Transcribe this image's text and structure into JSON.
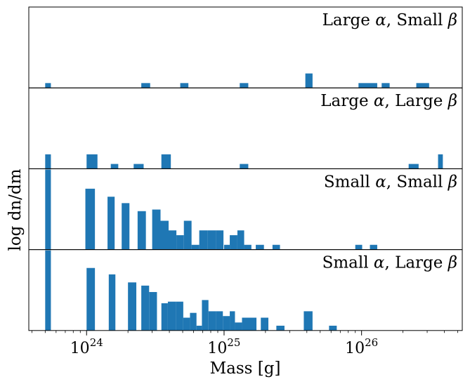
{
  "figure": {
    "ylabel": "log dn/dm",
    "xlabel": "Mass [g]",
    "bar_color": "#1f77b4",
    "xaxis": {
      "scale": "log",
      "range": [
        3.8e+23,
        5.4e+26
      ],
      "major_ticks": [
        {
          "value": 1e+24,
          "base": "10",
          "exp": "24"
        },
        {
          "value": 1e+25,
          "base": "10",
          "exp": "25"
        },
        {
          "value": 1e+26,
          "base": "10",
          "exp": "26"
        }
      ]
    }
  },
  "chart_data": [
    {
      "type": "bar",
      "panel_label_prefix": "Large ",
      "alpha_symbol": "α",
      "panel_label_mid": ", Small ",
      "beta_symbol": "β",
      "ylim": [
        0,
        5.0
      ],
      "yticks": "none",
      "bars": [
        {
          "x0": 5e+23,
          "x1": 5.5e+23,
          "v": 0.3
        },
        {
          "x0": 2.5e+24,
          "x1": 2.9e+24,
          "v": 0.3
        },
        {
          "x0": 4.8e+24,
          "x1": 5.5e+24,
          "v": 0.3
        },
        {
          "x0": 1.3e+25,
          "x1": 1.5e+25,
          "v": 0.3
        },
        {
          "x0": 3.9e+25,
          "x1": 4.4e+25,
          "v": 0.9
        },
        {
          "x0": 9.5e+25,
          "x1": 1.3e+26,
          "v": 0.3
        },
        {
          "x0": 1.4e+26,
          "x1": 1.6e+26,
          "v": 0.3
        },
        {
          "x0": 2.5e+26,
          "x1": 3.1e+26,
          "v": 0.3
        }
      ]
    },
    {
      "type": "bar",
      "panel_label_prefix": "Large ",
      "alpha_symbol": "α",
      "panel_label_mid": ", Large ",
      "beta_symbol": "β",
      "ylim": [
        0,
        5.0
      ],
      "yticks": "none",
      "bars": [
        {
          "x0": 5e+23,
          "x1": 5.5e+23,
          "v": 0.9
        },
        {
          "x0": 1e+24,
          "x1": 1.2e+24,
          "v": 0.9
        },
        {
          "x0": 1.5e+24,
          "x1": 1.7e+24,
          "v": 0.3
        },
        {
          "x0": 2.2e+24,
          "x1": 2.6e+24,
          "v": 0.3
        },
        {
          "x0": 3.5e+24,
          "x1": 4.1e+24,
          "v": 0.9
        },
        {
          "x0": 1.3e+25,
          "x1": 1.5e+25,
          "v": 0.3
        },
        {
          "x0": 2.2e+26,
          "x1": 2.6e+26,
          "v": 0.3
        },
        {
          "x0": 3.6e+26,
          "x1": 3.9e+26,
          "v": 0.9
        }
      ]
    },
    {
      "type": "bar",
      "panel_label_prefix": "Small ",
      "alpha_symbol": "α",
      "panel_label_mid": ", Small ",
      "beta_symbol": "β",
      "ylim": [
        0,
        5.0
      ],
      "yticks": "none",
      "bars": [
        {
          "x0": 5e+23,
          "x1": 5.5e+23,
          "v": 5.0
        },
        {
          "x0": 9.8e+23,
          "x1": 1.15e+24,
          "v": 3.8
        },
        {
          "x0": 1.42e+24,
          "x1": 1.6e+24,
          "v": 3.3
        },
        {
          "x0": 1.8e+24,
          "x1": 2.05e+24,
          "v": 2.9
        },
        {
          "x0": 2.35e+24,
          "x1": 2.7e+24,
          "v": 2.4
        },
        {
          "x0": 3e+24,
          "x1": 3.45e+24,
          "v": 2.5
        },
        {
          "x0": 3.45e+24,
          "x1": 3.95e+24,
          "v": 1.8
        },
        {
          "x0": 3.95e+24,
          "x1": 4.5e+24,
          "v": 1.2
        },
        {
          "x0": 4.5e+24,
          "x1": 5.1e+24,
          "v": 0.9
        },
        {
          "x0": 5.1e+24,
          "x1": 5.8e+24,
          "v": 1.8
        },
        {
          "x0": 5.8e+24,
          "x1": 6.6e+24,
          "v": 0.3
        },
        {
          "x0": 6.6e+24,
          "x1": 7.6e+24,
          "v": 1.2
        },
        {
          "x0": 7.6e+24,
          "x1": 8.7e+24,
          "v": 1.2
        },
        {
          "x0": 8.7e+24,
          "x1": 9.9e+24,
          "v": 1.2
        },
        {
          "x0": 1e+25,
          "x1": 1.1e+25,
          "v": 0.3
        },
        {
          "x0": 1.1e+25,
          "x1": 1.25e+25,
          "v": 0.9
        },
        {
          "x0": 1.25e+25,
          "x1": 1.4e+25,
          "v": 1.2
        },
        {
          "x0": 1.4e+25,
          "x1": 1.58e+25,
          "v": 0.3
        },
        {
          "x0": 1.7e+25,
          "x1": 1.95e+25,
          "v": 0.3
        },
        {
          "x0": 2.25e+25,
          "x1": 2.55e+25,
          "v": 0.3
        },
        {
          "x0": 9e+25,
          "x1": 1.01e+26,
          "v": 0.3
        },
        {
          "x0": 1.15e+26,
          "x1": 1.3e+26,
          "v": 0.3
        }
      ]
    },
    {
      "type": "bar",
      "panel_label_prefix": "Small ",
      "alpha_symbol": "α",
      "panel_label_mid": ", Large ",
      "beta_symbol": "β",
      "ylim": [
        0,
        5.0
      ],
      "yticks": "none",
      "bars": [
        {
          "x0": 5e+23,
          "x1": 5.5e+23,
          "v": 5.0
        },
        {
          "x0": 1e+24,
          "x1": 1.15e+24,
          "v": 3.9
        },
        {
          "x0": 1.45e+24,
          "x1": 1.62e+24,
          "v": 3.5
        },
        {
          "x0": 2e+24,
          "x1": 2.3e+24,
          "v": 3.0
        },
        {
          "x0": 2.5e+24,
          "x1": 2.85e+24,
          "v": 2.8
        },
        {
          "x0": 2.85e+24,
          "x1": 3.25e+24,
          "v": 2.4
        },
        {
          "x0": 3.5e+24,
          "x1": 3.9e+24,
          "v": 1.7
        },
        {
          "x0": 3.9e+24,
          "x1": 4.45e+24,
          "v": 1.8
        },
        {
          "x0": 4.45e+24,
          "x1": 5.05e+24,
          "v": 1.8
        },
        {
          "x0": 5.05e+24,
          "x1": 5.65e+24,
          "v": 0.8
        },
        {
          "x0": 5.65e+24,
          "x1": 6.3e+24,
          "v": 1.1
        },
        {
          "x0": 6.3e+24,
          "x1": 6.9e+24,
          "v": 0.3
        },
        {
          "x0": 6.9e+24,
          "x1": 7.7e+24,
          "v": 1.9
        },
        {
          "x0": 7.7e+24,
          "x1": 8.7e+24,
          "v": 1.2
        },
        {
          "x0": 8.7e+24,
          "x1": 9.8e+24,
          "v": 1.2
        },
        {
          "x0": 9.8e+24,
          "x1": 1.1e+25,
          "v": 0.9
        },
        {
          "x0": 1.1e+25,
          "x1": 1.2e+25,
          "v": 1.2
        },
        {
          "x0": 1.2e+25,
          "x1": 1.35e+25,
          "v": 0.5
        },
        {
          "x0": 1.35e+25,
          "x1": 1.72e+25,
          "v": 0.8
        },
        {
          "x0": 1.85e+25,
          "x1": 2.1e+25,
          "v": 0.8
        },
        {
          "x0": 2.4e+25,
          "x1": 2.75e+25,
          "v": 0.3
        },
        {
          "x0": 3.8e+25,
          "x1": 4.4e+25,
          "v": 1.2
        },
        {
          "x0": 5.8e+25,
          "x1": 6.6e+25,
          "v": 0.3
        }
      ]
    }
  ]
}
